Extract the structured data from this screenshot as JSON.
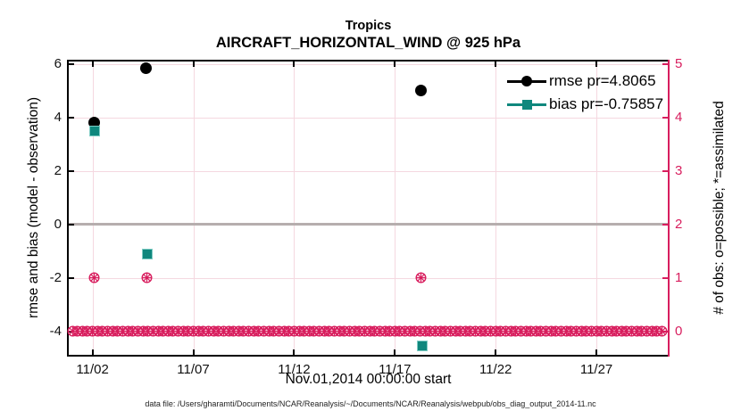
{
  "figure": {
    "suptitle": "Tropics",
    "title": "AIRCRAFT_HORIZONTAL_WIND @ 925 hPa",
    "xlabel": "Nov.01,2014 00:00:00 start",
    "ylabel_left": "rmse and bias (model - observation)",
    "ylabel_right": "# of obs: o=possible; *=assimilated",
    "annotation": "data file: /Users/gharamti/Documents/NCAR/Reanalysis/~/Documents/NCAR/Reanalysis/webpub/obs_diag_output_2014-11.nc"
  },
  "chart_data": {
    "type": "scatter",
    "title": "Tropics",
    "subtitle": "AIRCRAFT_HORIZONTAL_WIND @ 925 hPa",
    "xlabel": "Nov.01,2014 00:00:00 start",
    "ylabel_left": "rmse and bias (model - observation)",
    "ylabel_right": "# of obs: o=possible; *=assimilated",
    "x_unit": "day of November 2014",
    "xlim": [
      0.82,
      30.54
    ],
    "ylim_left": [
      -4.87,
      6.1
    ],
    "ylim_right": [
      -0.435,
      5.05
    ],
    "x_ticks": [
      {
        "value": 2,
        "label": "11/02"
      },
      {
        "value": 7,
        "label": "11/07"
      },
      {
        "value": 12,
        "label": "11/12"
      },
      {
        "value": 17,
        "label": "11/17"
      },
      {
        "value": 22,
        "label": "11/22"
      },
      {
        "value": 27,
        "label": "11/27"
      }
    ],
    "y_ticks_left": [
      6,
      4,
      2,
      0,
      -2,
      -4
    ],
    "y_ticks_right": [
      5,
      4,
      3,
      2,
      1,
      0
    ],
    "grid": true,
    "zero_reference_line_left": 0,
    "legend_position": "top-right-inside",
    "series": [
      {
        "name": "rmse pr=4.8065",
        "axis": "left",
        "marker": "filled-circle",
        "color": "#000000",
        "points": [
          {
            "x": 2.1,
            "y": 3.8
          },
          {
            "x": 4.65,
            "y": 5.85
          },
          {
            "x": 18.3,
            "y": 5.0
          }
        ]
      },
      {
        "name": "bias pr=-0.75857",
        "axis": "left",
        "marker": "filled-square",
        "color": "#0f877d",
        "edge_color": "#7fccc4",
        "points": [
          {
            "x": 2.1,
            "y": 3.5
          },
          {
            "x": 4.7,
            "y": -1.1
          },
          {
            "x": 18.35,
            "y": -4.55
          }
        ]
      },
      {
        "name": "obs count (o=possible, *=assimilated)",
        "axis": "right",
        "marker": "circle-asterisk",
        "color": "#d81e5e",
        "points": [
          {
            "x": 2.1,
            "y": 1
          },
          {
            "x": 4.7,
            "y": 1
          },
          {
            "x": 18.3,
            "y": 1
          }
        ]
      }
    ],
    "obs_zero_row": {
      "axis": "right",
      "y": 0,
      "x_start": 1.0,
      "x_end": 30.25,
      "x_step": 0.25,
      "marker": "circle-asterisk",
      "color": "#d81e5e"
    },
    "legend": [
      {
        "label": "rmse pr=4.8065",
        "marker": "filled-circle",
        "color": "#000000"
      },
      {
        "label": "bias pr=-0.75857",
        "marker": "filled-square",
        "color": "#0f877d"
      }
    ],
    "colors": {
      "right_axis": "#d81e5e",
      "grid": "#f5d8e0",
      "zero_line": "#b6aeae",
      "axis": "#000000",
      "background": "#ffffff"
    }
  }
}
